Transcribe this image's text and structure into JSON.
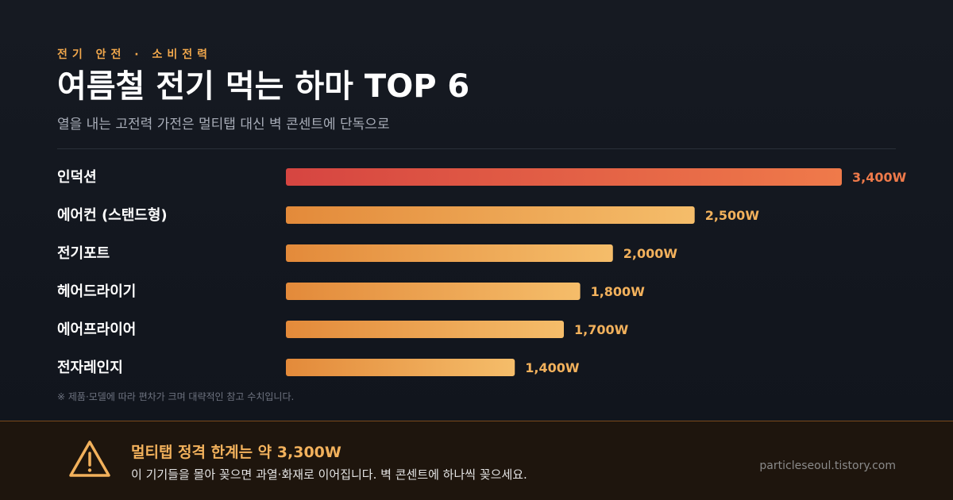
{
  "header": {
    "eyebrow": "전기 안전 · 소비전력",
    "title": "여름철 전기 먹는 하마 TOP 6",
    "subtitle": "열을 내는 고전력 가전은 멀티탭 대신 벽 콘센트에 단독으로"
  },
  "chart_data": {
    "type": "bar",
    "orientation": "horizontal",
    "categories": [
      "인덕션",
      "에어컨 (스탠드형)",
      "전기포트",
      "헤어드라이기",
      "에어프라이어",
      "전자레인지"
    ],
    "values": [
      3400,
      2500,
      2000,
      1800,
      1700,
      1400
    ],
    "value_labels": [
      "3,400W",
      "2,500W",
      "2,000W",
      "1,800W",
      "1,700W",
      "1,400W"
    ],
    "xlim": [
      0,
      3400
    ],
    "grid": false,
    "colors": {
      "highlight_start": "#d64541",
      "highlight_end": "#ef7a4a",
      "highlight_label": "#ef7a4a",
      "bar_start": "#e38a3a",
      "bar_end": "#f5bd6a",
      "bar_label": "#f2b15c",
      "category_label": "#ffffff"
    }
  },
  "footnote": "※ 제품·모델에 따라 편차가 크며 대략적인 참고 수치입니다.",
  "alert": {
    "icon": "warning-icon",
    "title": "멀티탭 정격 한계는 약 3,300W",
    "text": "이 기기들을 몰아 꽂으면 과열·화재로 이어집니다. 벽 콘센트에 하나씩 꽂으세요.",
    "accent_color": "#f2b15c"
  },
  "site": "particleseoul.tistory.com"
}
